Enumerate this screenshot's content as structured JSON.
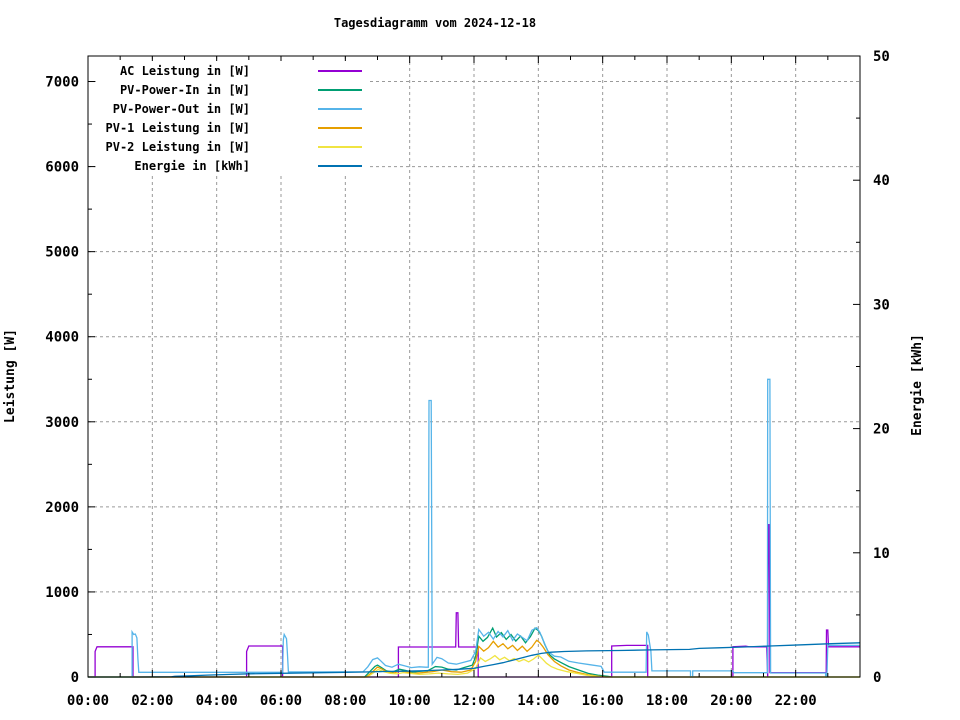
{
  "chart_data": {
    "type": "line",
    "title": "Tagesdiagramm vom 2024-12-18",
    "xlabel": "",
    "ylabel": "Leistung [W]",
    "y2label": "Energie [kWh]",
    "xlim": [
      0,
      24
    ],
    "ylim": [
      0,
      7300
    ],
    "y2lim": [
      0,
      50
    ],
    "grid": true,
    "grid_style": "dashed-gray",
    "legend_position": "top-left-inside",
    "x_ticks": [
      {
        "h": 0,
        "label": "00:00"
      },
      {
        "h": 2,
        "label": "02:00"
      },
      {
        "h": 4,
        "label": "04:00"
      },
      {
        "h": 6,
        "label": "06:00"
      },
      {
        "h": 8,
        "label": "08:00"
      },
      {
        "h": 10,
        "label": "10:00"
      },
      {
        "h": 12,
        "label": "12:00"
      },
      {
        "h": 14,
        "label": "14:00"
      },
      {
        "h": 16,
        "label": "16:00"
      },
      {
        "h": 18,
        "label": "18:00"
      },
      {
        "h": 20,
        "label": "20:00"
      },
      {
        "h": 22,
        "label": "22:00"
      }
    ],
    "x_major_hours": [
      0,
      2,
      4,
      6,
      8,
      10,
      12,
      14,
      16,
      18,
      20,
      22,
      24
    ],
    "x_minor_hours": [
      1,
      3,
      5,
      7,
      9,
      11,
      13,
      15,
      17,
      19,
      21,
      23
    ],
    "x_grid_hours": [
      2,
      4,
      6,
      8,
      10,
      12,
      14,
      16,
      18,
      20,
      22
    ],
    "y_ticks": [
      0,
      1000,
      2000,
      3000,
      4000,
      5000,
      6000,
      7000
    ],
    "y_minor": [
      500,
      1500,
      2500,
      3500,
      4500,
      5500,
      6500
    ],
    "y_grid": [
      1000,
      2000,
      3000,
      4000,
      5000,
      6000,
      7000
    ],
    "y2_ticks": [
      0,
      10,
      20,
      30,
      40,
      50
    ],
    "y2_minor": [
      5,
      15,
      25,
      35,
      45
    ],
    "series": [
      {
        "id": "ac-leistung",
        "name": "AC Leistung in [W]",
        "color": "#9400D3",
        "axis": "y1",
        "points": [
          [
            0,
            0
          ],
          [
            0.22,
            0
          ],
          [
            0.22,
            300
          ],
          [
            0.28,
            355
          ],
          [
            1.4,
            355
          ],
          [
            1.4,
            0
          ],
          [
            4.93,
            0
          ],
          [
            4.93,
            300
          ],
          [
            5.0,
            365
          ],
          [
            6.05,
            365
          ],
          [
            6.05,
            0
          ],
          [
            9.65,
            0
          ],
          [
            9.65,
            353
          ],
          [
            11.43,
            353
          ],
          [
            11.45,
            755
          ],
          [
            11.5,
            755
          ],
          [
            11.52,
            353
          ],
          [
            12.13,
            353
          ],
          [
            12.13,
            0
          ],
          [
            16.28,
            0
          ],
          [
            16.28,
            365
          ],
          [
            16.75,
            372
          ],
          [
            17.4,
            372
          ],
          [
            17.4,
            0
          ],
          [
            20.05,
            0
          ],
          [
            20.05,
            355
          ],
          [
            20.45,
            362
          ],
          [
            20.55,
            355
          ],
          [
            21.1,
            355
          ],
          [
            21.13,
            0
          ],
          [
            21.15,
            1790
          ],
          [
            21.18,
            1790
          ],
          [
            21.2,
            52
          ],
          [
            22.95,
            52
          ],
          [
            22.96,
            553
          ],
          [
            23.0,
            553
          ],
          [
            23.02,
            355
          ],
          [
            24,
            355
          ]
        ]
      },
      {
        "id": "pv-power-in",
        "name": "PV-Power-In in [W]",
        "color": "#009E73",
        "axis": "y1",
        "points": [
          [
            0,
            0
          ],
          [
            8.6,
            0
          ],
          [
            8.75,
            60
          ],
          [
            8.92,
            125
          ],
          [
            9.0,
            140
          ],
          [
            9.12,
            112
          ],
          [
            9.28,
            72
          ],
          [
            9.48,
            60
          ],
          [
            9.68,
            92
          ],
          [
            9.88,
            76
          ],
          [
            10.08,
            56
          ],
          [
            10.3,
            66
          ],
          [
            10.55,
            72
          ],
          [
            10.8,
            122
          ],
          [
            11.0,
            116
          ],
          [
            11.2,
            92
          ],
          [
            11.45,
            82
          ],
          [
            11.7,
            112
          ],
          [
            11.95,
            140
          ],
          [
            12.05,
            240
          ],
          [
            12.15,
            480
          ],
          [
            12.28,
            420
          ],
          [
            12.42,
            465
          ],
          [
            12.58,
            575
          ],
          [
            12.7,
            470
          ],
          [
            12.85,
            522
          ],
          [
            13.0,
            442
          ],
          [
            13.15,
            500
          ],
          [
            13.3,
            422
          ],
          [
            13.45,
            482
          ],
          [
            13.6,
            402
          ],
          [
            13.75,
            472
          ],
          [
            13.9,
            575
          ],
          [
            14.0,
            545
          ],
          [
            14.1,
            482
          ],
          [
            14.2,
            382
          ],
          [
            14.35,
            262
          ],
          [
            14.5,
            212
          ],
          [
            14.7,
            172
          ],
          [
            14.95,
            122
          ],
          [
            15.25,
            82
          ],
          [
            15.55,
            42
          ],
          [
            15.85,
            22
          ],
          [
            16.15,
            8
          ],
          [
            16.3,
            0
          ],
          [
            24,
            0
          ]
        ]
      },
      {
        "id": "pv-power-out",
        "name": "PV-Power-Out in [W]",
        "color": "#56B4E9",
        "axis": "y1",
        "points": [
          [
            0,
            0
          ],
          [
            1.37,
            0
          ],
          [
            1.37,
            530
          ],
          [
            1.42,
            500
          ],
          [
            1.47,
            505
          ],
          [
            1.52,
            460
          ],
          [
            1.55,
            215
          ],
          [
            1.58,
            55
          ],
          [
            6.05,
            55
          ],
          [
            6.07,
            435
          ],
          [
            6.1,
            500
          ],
          [
            6.17,
            450
          ],
          [
            6.2,
            280
          ],
          [
            6.23,
            60
          ],
          [
            8.55,
            60
          ],
          [
            8.7,
            120
          ],
          [
            8.85,
            205
          ],
          [
            9.0,
            225
          ],
          [
            9.1,
            190
          ],
          [
            9.25,
            135
          ],
          [
            9.45,
            115
          ],
          [
            9.65,
            150
          ],
          [
            9.85,
            130
          ],
          [
            10.05,
            110
          ],
          [
            10.3,
            120
          ],
          [
            10.5,
            115
          ],
          [
            10.58,
            115
          ],
          [
            10.6,
            3250
          ],
          [
            10.67,
            3250
          ],
          [
            10.7,
            150
          ],
          [
            10.85,
            230
          ],
          [
            11.0,
            215
          ],
          [
            11.2,
            165
          ],
          [
            11.45,
            150
          ],
          [
            11.7,
            175
          ],
          [
            11.9,
            195
          ],
          [
            12.05,
            300
          ],
          [
            12.15,
            560
          ],
          [
            12.3,
            480
          ],
          [
            12.45,
            525
          ],
          [
            12.6,
            445
          ],
          [
            12.75,
            535
          ],
          [
            12.9,
            470
          ],
          [
            13.05,
            545
          ],
          [
            13.2,
            430
          ],
          [
            13.35,
            505
          ],
          [
            13.5,
            465
          ],
          [
            13.65,
            425
          ],
          [
            13.8,
            550
          ],
          [
            13.95,
            580
          ],
          [
            14.05,
            525
          ],
          [
            14.15,
            430
          ],
          [
            14.3,
            300
          ],
          [
            14.5,
            245
          ],
          [
            14.7,
            235
          ],
          [
            14.95,
            185
          ],
          [
            15.25,
            165
          ],
          [
            15.6,
            145
          ],
          [
            15.95,
            125
          ],
          [
            16.05,
            56
          ],
          [
            17.35,
            56
          ],
          [
            17.37,
            530
          ],
          [
            17.42,
            495
          ],
          [
            17.5,
            300
          ],
          [
            17.53,
            72
          ],
          [
            18.73,
            72
          ],
          [
            18.73,
            0
          ],
          [
            18.8,
            0
          ],
          [
            18.8,
            72
          ],
          [
            20.05,
            72
          ],
          [
            20.08,
            50
          ],
          [
            21.12,
            50
          ],
          [
            21.13,
            3500
          ],
          [
            21.2,
            3500
          ],
          [
            21.22,
            47
          ],
          [
            22.93,
            47
          ],
          [
            22.93,
            0
          ],
          [
            22.97,
            0
          ],
          [
            23.0,
            372
          ],
          [
            24,
            372
          ]
        ]
      },
      {
        "id": "pv1-leistung",
        "name": "PV-1 Leistung in [W]",
        "color": "#E69F00",
        "axis": "y1",
        "points": [
          [
            0,
            0
          ],
          [
            8.65,
            0
          ],
          [
            8.82,
            52
          ],
          [
            9.0,
            118
          ],
          [
            9.15,
            92
          ],
          [
            9.3,
            57
          ],
          [
            9.5,
            46
          ],
          [
            9.7,
            70
          ],
          [
            9.9,
            60
          ],
          [
            10.1,
            42
          ],
          [
            10.4,
            52
          ],
          [
            10.7,
            62
          ],
          [
            11.0,
            82
          ],
          [
            11.3,
            62
          ],
          [
            11.6,
            56
          ],
          [
            11.9,
            82
          ],
          [
            12.05,
            180
          ],
          [
            12.15,
            360
          ],
          [
            12.3,
            305
          ],
          [
            12.45,
            345
          ],
          [
            12.6,
            420
          ],
          [
            12.75,
            352
          ],
          [
            12.9,
            392
          ],
          [
            13.05,
            332
          ],
          [
            13.2,
            372
          ],
          [
            13.35,
            312
          ],
          [
            13.5,
            362
          ],
          [
            13.65,
            302
          ],
          [
            13.8,
            352
          ],
          [
            13.95,
            432
          ],
          [
            14.05,
            402
          ],
          [
            14.15,
            352
          ],
          [
            14.3,
            262
          ],
          [
            14.5,
            182
          ],
          [
            14.7,
            132
          ],
          [
            14.95,
            82
          ],
          [
            15.25,
            52
          ],
          [
            15.55,
            26
          ],
          [
            15.85,
            10
          ],
          [
            16.1,
            0
          ],
          [
            24,
            0
          ]
        ]
      },
      {
        "id": "pv2-leistung",
        "name": "PV-2 Leistung in [W]",
        "color": "#F0E442",
        "axis": "y1",
        "points": [
          [
            0,
            0
          ],
          [
            8.68,
            0
          ],
          [
            8.85,
            42
          ],
          [
            9.02,
            88
          ],
          [
            9.2,
            62
          ],
          [
            9.4,
            42
          ],
          [
            9.6,
            36
          ],
          [
            9.8,
            52
          ],
          [
            10.0,
            42
          ],
          [
            10.3,
            32
          ],
          [
            10.6,
            36
          ],
          [
            10.9,
            46
          ],
          [
            11.2,
            36
          ],
          [
            11.5,
            31
          ],
          [
            11.8,
            46
          ],
          [
            12.05,
            100
          ],
          [
            12.2,
            225
          ],
          [
            12.35,
            182
          ],
          [
            12.5,
            212
          ],
          [
            12.65,
            252
          ],
          [
            12.8,
            202
          ],
          [
            12.95,
            232
          ],
          [
            13.1,
            192
          ],
          [
            13.25,
            217
          ],
          [
            13.4,
            182
          ],
          [
            13.55,
            207
          ],
          [
            13.7,
            177
          ],
          [
            13.85,
            212
          ],
          [
            14.0,
            257
          ],
          [
            14.1,
            222
          ],
          [
            14.25,
            162
          ],
          [
            14.4,
            122
          ],
          [
            14.6,
            92
          ],
          [
            14.9,
            62
          ],
          [
            15.2,
            42
          ],
          [
            15.5,
            21
          ],
          [
            15.8,
            8
          ],
          [
            16.0,
            0
          ],
          [
            24,
            0
          ]
        ]
      },
      {
        "id": "energie",
        "name": "Energie in [kWh]",
        "color": "#0072B2",
        "axis": "y2",
        "points": [
          [
            0,
            0
          ],
          [
            1.6,
            0.0
          ],
          [
            2.6,
            0.02
          ],
          [
            2.7,
            0.06
          ],
          [
            3.2,
            0.1
          ],
          [
            3.7,
            0.15
          ],
          [
            4.3,
            0.2
          ],
          [
            5.0,
            0.26
          ],
          [
            6.0,
            0.3
          ],
          [
            7.0,
            0.34
          ],
          [
            8.0,
            0.38
          ],
          [
            8.6,
            0.4
          ],
          [
            9.2,
            0.44
          ],
          [
            9.8,
            0.47
          ],
          [
            10.4,
            0.5
          ],
          [
            11.0,
            0.56
          ],
          [
            11.5,
            0.62
          ],
          [
            12.0,
            0.7
          ],
          [
            12.3,
            0.85
          ],
          [
            12.6,
            1.0
          ],
          [
            12.9,
            1.15
          ],
          [
            13.2,
            1.35
          ],
          [
            13.5,
            1.55
          ],
          [
            13.8,
            1.75
          ],
          [
            14.1,
            1.9
          ],
          [
            14.4,
            2.0
          ],
          [
            14.8,
            2.05
          ],
          [
            15.5,
            2.1
          ],
          [
            16.5,
            2.13
          ],
          [
            17.5,
            2.18
          ],
          [
            18.7,
            2.22
          ],
          [
            19.0,
            2.3
          ],
          [
            19.6,
            2.35
          ],
          [
            20.5,
            2.42
          ],
          [
            21.2,
            2.5
          ],
          [
            21.9,
            2.56
          ],
          [
            22.6,
            2.63
          ],
          [
            23.1,
            2.68
          ],
          [
            23.6,
            2.72
          ],
          [
            24.0,
            2.75
          ]
        ]
      }
    ],
    "colors": {
      "background": "#ffffff",
      "border": "#000000",
      "grid": "#9a9a9a",
      "text": "#000000"
    }
  }
}
